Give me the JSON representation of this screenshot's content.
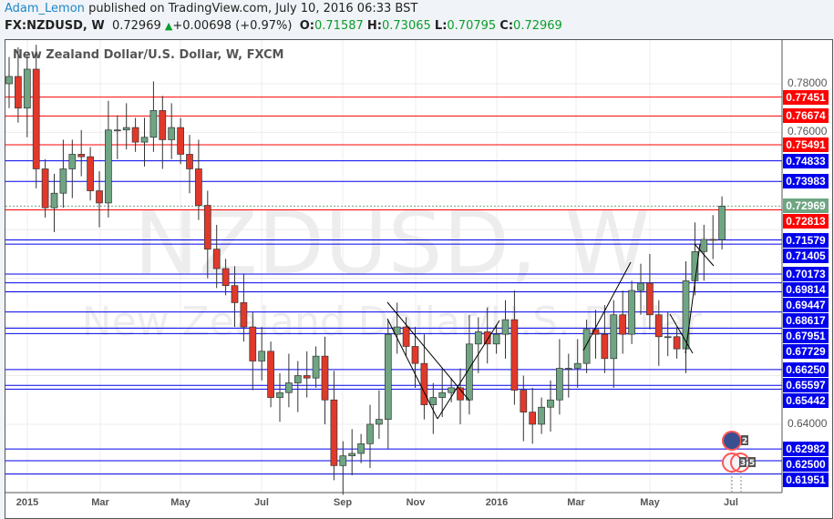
{
  "header": {
    "author": "Adam_Lemon",
    "published": "published on TradingView.com, July 10, 2016 06:33 BST",
    "symbol": "FX:NZDUSD, W",
    "last": "0.72969",
    "change": "+0.00698 (+0.97%)",
    "o_label": "O:",
    "o": "0.71587",
    "h_label": "H:",
    "h": "0.73065",
    "l_label": "L:",
    "l": "0.70795",
    "c_label": "C:",
    "c": "0.72969"
  },
  "chart_title": "New Zealand Dollar/U.S. Dollar, W, FXCM",
  "watermark": {
    "symbol": "NZDUSD, W",
    "name": "New Zealand Dollar/U.S. Dollar"
  },
  "colors": {
    "up": "#6fa583",
    "down": "#e0392b",
    "support": "#0000ee",
    "resistance": "#ff0000",
    "last": "#6fa583"
  },
  "price_axis": {
    "ticks": [
      "0.78000",
      "0.76000",
      "0.64000"
    ]
  },
  "levels": [
    {
      "price": "0.77451",
      "color": "red"
    },
    {
      "price": "0.76674",
      "color": "red"
    },
    {
      "price": "0.75491",
      "color": "red"
    },
    {
      "price": "0.74833",
      "color": "blue"
    },
    {
      "price": "0.73983",
      "color": "blue"
    },
    {
      "price": "0.72969",
      "color": "last"
    },
    {
      "price": "0.72813",
      "color": "red"
    },
    {
      "price": "0.71579",
      "color": "blue"
    },
    {
      "price": "0.71405",
      "color": "blue"
    },
    {
      "price": "0.70173",
      "color": "blue"
    },
    {
      "price": "0.69814",
      "color": "blue"
    },
    {
      "price": "0.69447",
      "color": "blue"
    },
    {
      "price": "0.68617",
      "color": "blue"
    },
    {
      "price": "0.67951",
      "color": "blue"
    },
    {
      "price": "0.67729",
      "color": "blue"
    },
    {
      "price": "0.66250",
      "color": "blue"
    },
    {
      "price": "0.65597",
      "color": "blue"
    },
    {
      "price": "0.65442",
      "color": "blue"
    },
    {
      "price": "0.62982",
      "color": "blue"
    },
    {
      "price": "0.62500",
      "color": "blue"
    },
    {
      "price": "0.61951",
      "color": "blue"
    }
  ],
  "time_axis": [
    "2015",
    "Mar",
    "May",
    "Jul",
    "Sep",
    "Nov",
    "2016",
    "Mar",
    "May",
    "Jul"
  ],
  "event_badges": [
    "2",
    "3",
    "5"
  ],
  "chart_data": {
    "type": "candlestick",
    "interval": "W",
    "ylim": [
      0.615,
      0.79
    ],
    "closes": [
      0.78,
      0.783,
      0.77,
      0.786,
      0.745,
      0.729,
      0.735,
      0.745,
      0.751,
      0.75,
      0.736,
      0.731,
      0.761,
      0.761,
      0.762,
      0.756,
      0.758,
      0.769,
      0.757,
      0.762,
      0.751,
      0.745,
      0.73,
      0.712,
      0.704,
      0.697,
      0.69,
      0.68,
      0.666,
      0.67,
      0.651,
      0.653,
      0.657,
      0.66,
      0.659,
      0.668,
      0.65,
      0.623,
      0.627,
      0.628,
      0.632,
      0.64,
      0.642,
      0.677,
      0.68,
      0.672,
      0.665,
      0.648,
      0.651,
      0.653,
      0.655,
      0.65,
      0.673,
      0.678,
      0.673,
      0.677,
      0.683,
      0.654,
      0.645,
      0.64,
      0.647,
      0.65,
      0.663,
      0.663,
      0.665,
      0.679,
      0.677,
      0.667,
      0.685,
      0.677,
      0.695,
      0.698,
      0.685,
      0.676,
      0.676,
      0.671,
      0.699,
      0.711,
      0.716,
      0.7159,
      0.72969
    ]
  }
}
